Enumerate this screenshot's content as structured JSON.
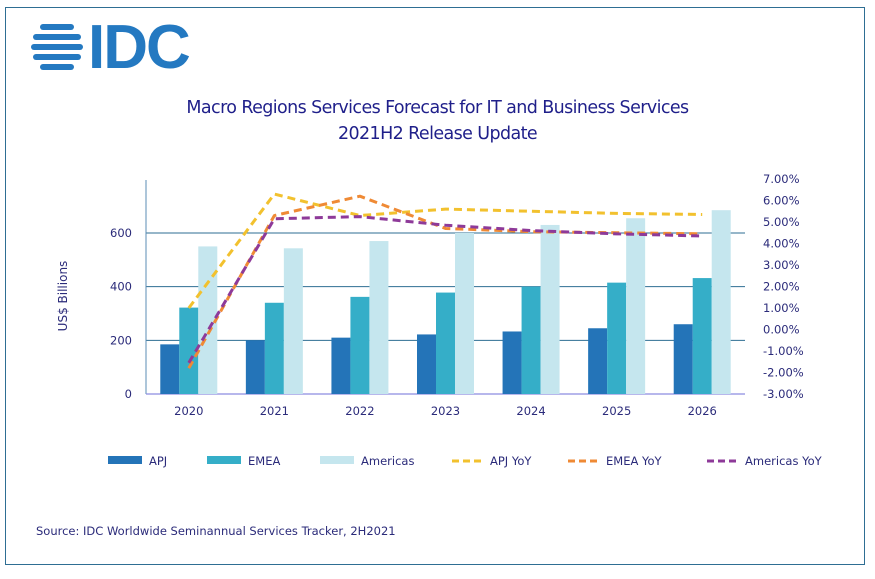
{
  "logo": {
    "text": "IDC",
    "icon": "idc-globe-icon",
    "color": "#2479c1"
  },
  "source": "Source:  IDC Worldwide  Seminannual Services Tracker, 2H2021",
  "chart_data": {
    "type": "bar",
    "title": "Macro Regions Services Forecast for IT and Business Services",
    "subtitle": "2021H2 Release Update",
    "xlabel": "",
    "ylabel": "US$ Billions",
    "y2label": "",
    "categories": [
      "2020",
      "2021",
      "2022",
      "2023",
      "2024",
      "2025",
      "2026"
    ],
    "ylim": [
      0,
      800
    ],
    "yticks": [
      0,
      200,
      400,
      600
    ],
    "y2lim": [
      -3,
      7
    ],
    "y2ticks": [
      "-3.00%",
      "-2.00%",
      "-1.00%",
      "0.00%",
      "1.00%",
      "2.00%",
      "3.00%",
      "4.00%",
      "5.00%",
      "6.00%",
      "7.00%"
    ],
    "y2tick_values": [
      -3,
      -2,
      -1,
      0,
      1,
      2,
      3,
      4,
      5,
      6,
      7
    ],
    "grid": true,
    "legend_position": "bottom",
    "series": [
      {
        "name": "APJ",
        "kind": "bar",
        "axis": "left",
        "color": "#2474b8",
        "values": [
          185,
          200,
          210,
          222,
          233,
          245,
          260
        ]
      },
      {
        "name": "EMEA",
        "kind": "bar",
        "axis": "left",
        "color": "#35aec8",
        "values": [
          322,
          340,
          362,
          378,
          400,
          415,
          432
        ]
      },
      {
        "name": "Americas",
        "kind": "bar",
        "axis": "left",
        "color": "#c5e6ee",
        "values": [
          550,
          543,
          570,
          600,
          630,
          655,
          685
        ]
      },
      {
        "name": "APJ YoY",
        "kind": "line",
        "style": "dashed",
        "axis": "right",
        "unit": "%",
        "color": "#f2c12e",
        "values": [
          1.0,
          6.3,
          5.3,
          5.6,
          5.5,
          5.4,
          5.35
        ]
      },
      {
        "name": "EMEA YoY",
        "kind": "line",
        "style": "dashed",
        "axis": "right",
        "unit": "%",
        "color": "#ef8a35",
        "values": [
          -1.8,
          5.3,
          6.2,
          4.7,
          4.55,
          4.5,
          4.45
        ]
      },
      {
        "name": "Americas YoY",
        "kind": "line",
        "style": "dashed",
        "axis": "right",
        "unit": "%",
        "color": "#8e3a99",
        "values": [
          -1.55,
          5.15,
          5.25,
          4.85,
          4.6,
          4.45,
          4.35
        ]
      }
    ]
  }
}
